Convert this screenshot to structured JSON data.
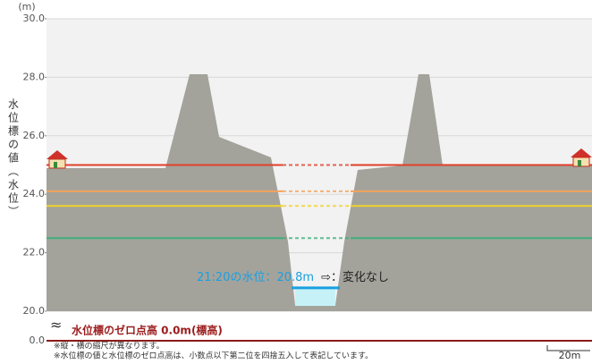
{
  "chart_data": {
    "type": "cross-section",
    "y_unit": "(m)",
    "y_axis_label": "水位標の値（水位）",
    "ylim": [
      20,
      30
    ],
    "yticks": [
      {
        "value": 20,
        "label": "20.0"
      },
      {
        "value": 22,
        "label": "22.0"
      },
      {
        "value": 24,
        "label": "24.0"
      },
      {
        "value": 26,
        "label": "26.0"
      },
      {
        "value": 28,
        "label": "28.0"
      },
      {
        "value": 30,
        "label": "30.0"
      }
    ],
    "zero_tick": {
      "value": 0,
      "label": "0.0"
    },
    "grid": true,
    "reference_lines": [
      {
        "value": 25.0,
        "color": "#e0402a"
      },
      {
        "value": 24.1,
        "color": "#f3a35a"
      },
      {
        "value": 23.6,
        "color": "#f2d22a"
      },
      {
        "value": 22.5,
        "color": "#3fb07a"
      }
    ],
    "water_level": {
      "time_label": "21:20の水位：",
      "value": 20.8,
      "value_label": "20.8m",
      "trend": "⇨：変化なし",
      "color": "#1aa0e0"
    },
    "zero_height_label": "水位標のゼロ点高 0.0m(標高)",
    "notes": [
      "※縦・横の縮尺が異なります。",
      "※水位標の値と水位標のゼロ点高は、小数点以下第二位を四捨五入して表記しています。"
    ],
    "scale_label": "20m"
  }
}
